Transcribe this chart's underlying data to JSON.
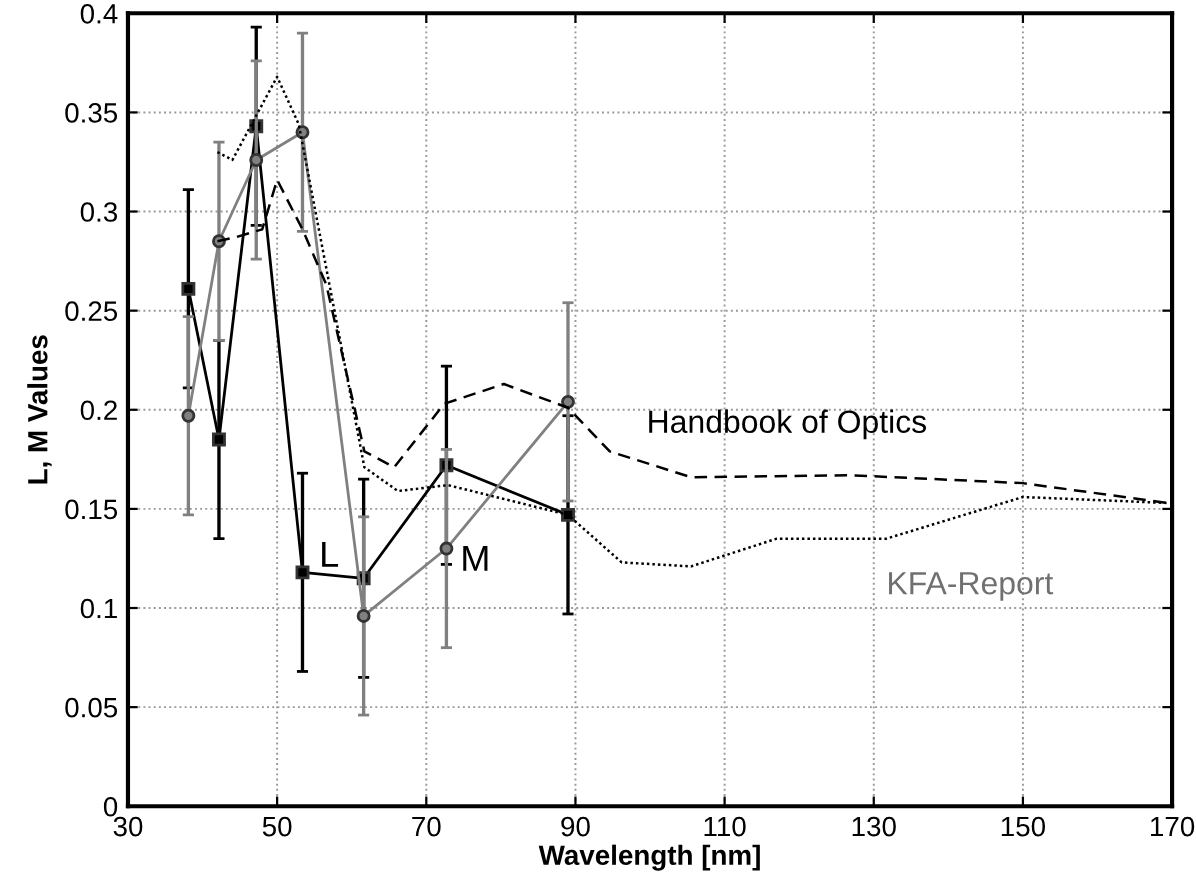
{
  "chart_data": {
    "type": "line",
    "xlabel": "Wavelength [nm]",
    "ylabel": "L, M Values",
    "xlim": [
      30,
      170
    ],
    "xticks": [
      30,
      50,
      70,
      90,
      110,
      130,
      150,
      170
    ],
    "ylim": [
      0,
      0.4
    ],
    "yticks": [
      0,
      0.05,
      0.1,
      0.15,
      0.2,
      0.25,
      0.3,
      0.35,
      0.4
    ],
    "grid": true,
    "legend": false,
    "series": [
      {
        "color": "#000000",
        "marker": "square",
        "line_style": "solid",
        "x": [
          38.1,
          42.2,
          47.2,
          53.4,
          61.6,
          72.7,
          89.0
        ],
        "values": [
          0.261,
          0.185,
          0.343,
          0.118,
          0.115,
          0.172,
          0.147
        ],
        "errors": [
          0.05,
          0.05,
          0.05,
          0.05,
          0.05,
          0.05,
          0.05
        ]
      },
      {
        "color": "#808080",
        "marker": "circle",
        "line_style": "solid",
        "x": [
          38.1,
          42.2,
          47.2,
          53.4,
          61.6,
          72.7,
          89.0
        ],
        "values": [
          0.197,
          0.285,
          0.326,
          0.34,
          0.096,
          0.13,
          0.204
        ],
        "errors": [
          0.05,
          0.05,
          0.05,
          0.05,
          0.05,
          0.05,
          0.05
        ]
      },
      {
        "color": "#000000",
        "marker": "none",
        "line_style": "dashed",
        "x": [
          42,
          44.4,
          48,
          50,
          53.4,
          56.6,
          61.7,
          65.7,
          72.4,
          80.4,
          89,
          94.6,
          105.5,
          126.8,
          150,
          169.3
        ],
        "values": [
          0.285,
          0.287,
          0.291,
          0.316,
          0.291,
          0.263,
          0.179,
          0.171,
          0.203,
          0.213,
          0.201,
          0.179,
          0.166,
          0.167,
          0.163,
          0.153
        ]
      },
      {
        "color": "#000000",
        "marker": "none",
        "line_style": "dotted",
        "x": [
          42,
          44,
          50,
          52.9,
          61.7,
          66.2,
          72.9,
          89,
          96.2,
          105.5,
          117,
          131.7,
          150,
          169.3
        ],
        "values": [
          0.33,
          0.326,
          0.368,
          0.344,
          0.171,
          0.159,
          0.162,
          0.147,
          0.123,
          0.121,
          0.135,
          0.135,
          0.156,
          0.153
        ]
      }
    ],
    "annotations": [
      {
        "text": "L",
        "x": 53.4,
        "y": 0.118
      },
      {
        "text": "M",
        "x": 72.7,
        "y": 0.13
      },
      {
        "text": "Handbook of Optics",
        "x": 105.5,
        "y": 0.166
      },
      {
        "text": "KFA-Report",
        "x": 131.7,
        "y": 0.135
      }
    ]
  }
}
